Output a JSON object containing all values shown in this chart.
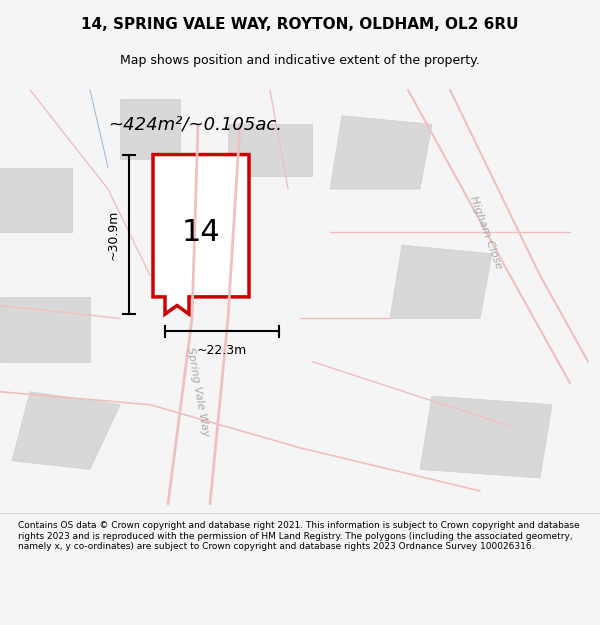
{
  "title": "14, SPRING VALE WAY, ROYTON, OLDHAM, OL2 6RU",
  "subtitle": "Map shows position and indicative extent of the property.",
  "area_text": "~424m²/~0.105ac.",
  "width_text": "~22.3m",
  "height_text": "~30.9m",
  "property_number": "14",
  "road_label": "Spring Vale Way",
  "road_label_2": "Higham Close",
  "footer": "Contains OS data © Crown copyright and database right 2021. This information is subject to Crown copyright and database rights 2023 and is reproduced with the permission of HM Land Registry. The polygons (including the associated geometry, namely x, y co-ordinates) are subject to Crown copyright and database rights 2023 Ordnance Survey 100026316.",
  "bg_color": "#f5f5f5",
  "map_bg": "#ffffff",
  "plot_color": "#cc0000",
  "plot_fill": "#ffffff",
  "road_color": "#f0c0c0",
  "building_color": "#d8d8d8",
  "title_color": "#000000",
  "footer_color": "#000000"
}
